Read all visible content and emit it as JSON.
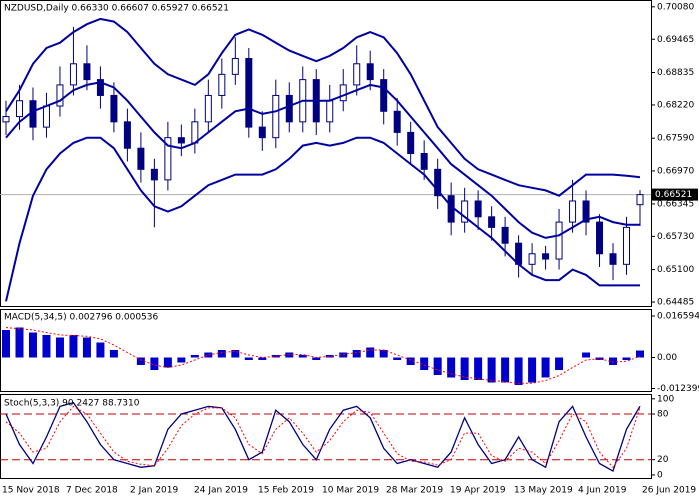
{
  "chart_data": [
    {
      "type": "candlestick",
      "title": "NZDUSD,Daily 0.66330 0.66607 0.65927 0.66521",
      "color": "#000080",
      "open": [
        0.679,
        0.68,
        0.683,
        0.678,
        0.682,
        0.686,
        0.69,
        0.687,
        0.684,
        0.679,
        0.674,
        0.67,
        0.668,
        0.676,
        0.675,
        0.679,
        0.684,
        0.688,
        0.691,
        0.678,
        0.676,
        0.684,
        0.679,
        0.687,
        0.679,
        0.683,
        0.686,
        0.69,
        0.687,
        0.681,
        0.677,
        0.673,
        0.67,
        0.665,
        0.66,
        0.664,
        0.661,
        0.659,
        0.656,
        0.652,
        0.654,
        0.653,
        0.66,
        0.664,
        0.66,
        0.654,
        0.652,
        0.6633
      ],
      "high": [
        0.683,
        0.686,
        0.6855,
        0.6845,
        0.6895,
        0.697,
        0.6935,
        0.6895,
        0.6865,
        0.6815,
        0.677,
        0.672,
        0.679,
        0.6785,
        0.6815,
        0.687,
        0.691,
        0.695,
        0.693,
        0.681,
        0.687,
        0.6865,
        0.6895,
        0.689,
        0.686,
        0.689,
        0.6935,
        0.6925,
        0.689,
        0.6835,
        0.679,
        0.6755,
        0.672,
        0.6675,
        0.6665,
        0.666,
        0.663,
        0.661,
        0.6575,
        0.656,
        0.6555,
        0.6625,
        0.668,
        0.666,
        0.6615,
        0.656,
        0.661,
        0.66607
      ],
      "low": [
        0.6765,
        0.6775,
        0.6755,
        0.676,
        0.68,
        0.684,
        0.685,
        0.6815,
        0.677,
        0.6715,
        0.6675,
        0.659,
        0.666,
        0.6725,
        0.673,
        0.677,
        0.6815,
        0.686,
        0.676,
        0.6735,
        0.674,
        0.677,
        0.677,
        0.6765,
        0.677,
        0.681,
        0.684,
        0.685,
        0.6785,
        0.6745,
        0.671,
        0.668,
        0.6625,
        0.6575,
        0.658,
        0.6585,
        0.6565,
        0.6535,
        0.6495,
        0.65,
        0.651,
        0.651,
        0.658,
        0.6575,
        0.6515,
        0.649,
        0.65,
        0.65927
      ],
      "close": [
        0.68,
        0.683,
        0.678,
        0.682,
        0.686,
        0.69,
        0.687,
        0.684,
        0.679,
        0.674,
        0.67,
        0.668,
        0.676,
        0.675,
        0.679,
        0.684,
        0.688,
        0.691,
        0.678,
        0.676,
        0.684,
        0.679,
        0.687,
        0.679,
        0.683,
        0.686,
        0.69,
        0.687,
        0.681,
        0.677,
        0.673,
        0.67,
        0.665,
        0.66,
        0.664,
        0.661,
        0.659,
        0.656,
        0.652,
        0.654,
        0.653,
        0.66,
        0.664,
        0.66,
        0.654,
        0.652,
        0.659,
        0.66521
      ],
      "bands": [
        {
          "color": "#0000a0",
          "values": [
            0.681,
            0.685,
            0.69,
            0.693,
            0.694,
            0.696,
            0.6975,
            0.6985,
            0.698,
            0.696,
            0.693,
            0.69,
            0.688,
            0.687,
            0.686,
            0.688,
            0.692,
            0.6955,
            0.6965,
            0.6955,
            0.694,
            0.6925,
            0.6915,
            0.6905,
            0.6915,
            0.693,
            0.695,
            0.696,
            0.695,
            0.692,
            0.688,
            0.683,
            0.678,
            0.675,
            0.672,
            0.67,
            0.669,
            0.668,
            0.667,
            0.6665,
            0.666,
            0.665,
            0.667,
            0.669,
            0.669,
            0.669,
            0.6688,
            0.6685
          ]
        },
        {
          "color": "#0000a0",
          "values": [
            0.676,
            0.679,
            0.681,
            0.682,
            0.683,
            0.685,
            0.686,
            0.6865,
            0.6855,
            0.683,
            0.68,
            0.677,
            0.6745,
            0.674,
            0.675,
            0.677,
            0.679,
            0.681,
            0.6815,
            0.6805,
            0.681,
            0.682,
            0.683,
            0.683,
            0.683,
            0.684,
            0.685,
            0.686,
            0.6855,
            0.683,
            0.68,
            0.677,
            0.674,
            0.671,
            0.669,
            0.667,
            0.665,
            0.6625,
            0.66,
            0.658,
            0.657,
            0.6575,
            0.659,
            0.6605,
            0.661,
            0.66,
            0.6595,
            0.6595
          ]
        },
        {
          "color": "#0000a0",
          "values": [
            0.645,
            0.656,
            0.665,
            0.67,
            0.673,
            0.675,
            0.676,
            0.676,
            0.674,
            0.67,
            0.666,
            0.663,
            0.662,
            0.663,
            0.665,
            0.667,
            0.668,
            0.669,
            0.669,
            0.669,
            0.67,
            0.672,
            0.6745,
            0.675,
            0.6745,
            0.675,
            0.676,
            0.676,
            0.675,
            0.673,
            0.671,
            0.669,
            0.666,
            0.663,
            0.661,
            0.659,
            0.657,
            0.6545,
            0.652,
            0.65,
            0.649,
            0.649,
            0.651,
            0.65,
            0.648,
            0.648,
            0.648,
            0.648
          ]
        }
      ],
      "last_price": {
        "value": 0.66521,
        "label": "0.66521"
      },
      "ylim": [
        0.6441,
        0.7019
      ],
      "yticks": [
        {
          "value": 0.7008,
          "label": "0.70080"
        },
        0.69465,
        0.68835,
        {
          "value": 0.6822,
          "label": "0.68220"
        },
        {
          "value": 0.6759,
          "label": "0.67590"
        },
        {
          "value": 0.6697,
          "label": "0.66970"
        },
        0.66345,
        {
          "value": 0.6573,
          "label": "0.65730"
        },
        {
          "value": 0.651,
          "label": "0.65100"
        },
        0.64485
      ],
      "x_labels": [
        "15 Nov 2018",
        "7 Dec 2018",
        "2 Jan 2019",
        "24 Jan 2019",
        "15 Feb 2019",
        "10 Mar 2019",
        "28 Mar 2019",
        "19 Apr 2019",
        "13 May 2019",
        "4 Jun 2019",
        "26 Jun 2019"
      ]
    },
    {
      "type": "bar",
      "title": "MACD(5,34,5) 0.002796 0.000536",
      "color": "#0000cd",
      "values": [
        0.011,
        0.012,
        0.01,
        0.009,
        0.008,
        0.009,
        0.008,
        0.006,
        0.003,
        0,
        -0.003,
        -0.005,
        -0.004,
        -0.002,
        0.001,
        0.002,
        0.003,
        0.003,
        -0.001,
        -0.001,
        0.001,
        0.002,
        0.001,
        -0.001,
        0.001,
        0.002,
        0.003,
        0.004,
        0.003,
        -0.001,
        -0.003,
        -0.005,
        -0.007,
        -0.008,
        -0.009,
        -0.009,
        -0.01,
        -0.01,
        -0.011,
        -0.01,
        -0.008,
        -0.005,
        0,
        0.002,
        -0.001,
        -0.003,
        -0.001,
        0.002796
      ],
      "signal": {
        "color": "#ff0000",
        "values": [
          0.012,
          0.0115,
          0.011,
          0.01,
          0.009,
          0.0088,
          0.0085,
          0.0075,
          0.005,
          0.002,
          -0.001,
          -0.003,
          -0.004,
          -0.003,
          -0.001,
          0.001,
          0.002,
          0.0025,
          0.001,
          0,
          0.0005,
          0.0012,
          0.0012,
          0,
          0.0005,
          0.0012,
          0.002,
          0.003,
          0.003,
          0.001,
          -0.001,
          -0.003,
          -0.005,
          -0.0065,
          -0.0078,
          -0.0085,
          -0.0092,
          -0.0097,
          -0.0103,
          -0.0103,
          -0.0092,
          -0.0072,
          -0.004,
          -0.001,
          -0.0005,
          -0.0018,
          -0.0015,
          0.000536
        ]
      },
      "ylim": [
        -0.0134,
        0.019
      ],
      "yticks": [
        0.016594,
        {
          "value": 0,
          "label": "0.00"
        },
        -0.012399
      ]
    },
    {
      "type": "line",
      "title": "Stoch(5,3,3) 90.2427 88.7310",
      "series": [
        {
          "color": "#000080",
          "values": [
            80,
            40,
            15,
            50,
            90,
            95,
            70,
            40,
            20,
            15,
            10,
            12,
            60,
            80,
            85,
            90,
            88,
            60,
            20,
            30,
            85,
            70,
            40,
            20,
            60,
            85,
            90,
            75,
            35,
            15,
            20,
            15,
            10,
            30,
            75,
            40,
            15,
            20,
            50,
            20,
            10,
            70,
            90,
            50,
            15,
            5,
            60,
            90.2427
          ]
        },
        {
          "color": "#ff0000",
          "values": [
            70,
            55,
            30,
            35,
            70,
            90,
            80,
            55,
            30,
            18,
            14,
            12,
            35,
            65,
            80,
            88,
            88,
            75,
            40,
            28,
            60,
            75,
            55,
            30,
            45,
            70,
            85,
            82,
            55,
            28,
            18,
            17,
            13,
            20,
            55,
            55,
            25,
            18,
            35,
            30,
            15,
            45,
            80,
            70,
            30,
            10,
            35,
            88.731
          ]
        }
      ],
      "levels": [
        80,
        20
      ],
      "ylim": [
        -4,
        105
      ],
      "yticks": [
        100,
        80,
        20,
        0
      ]
    }
  ]
}
